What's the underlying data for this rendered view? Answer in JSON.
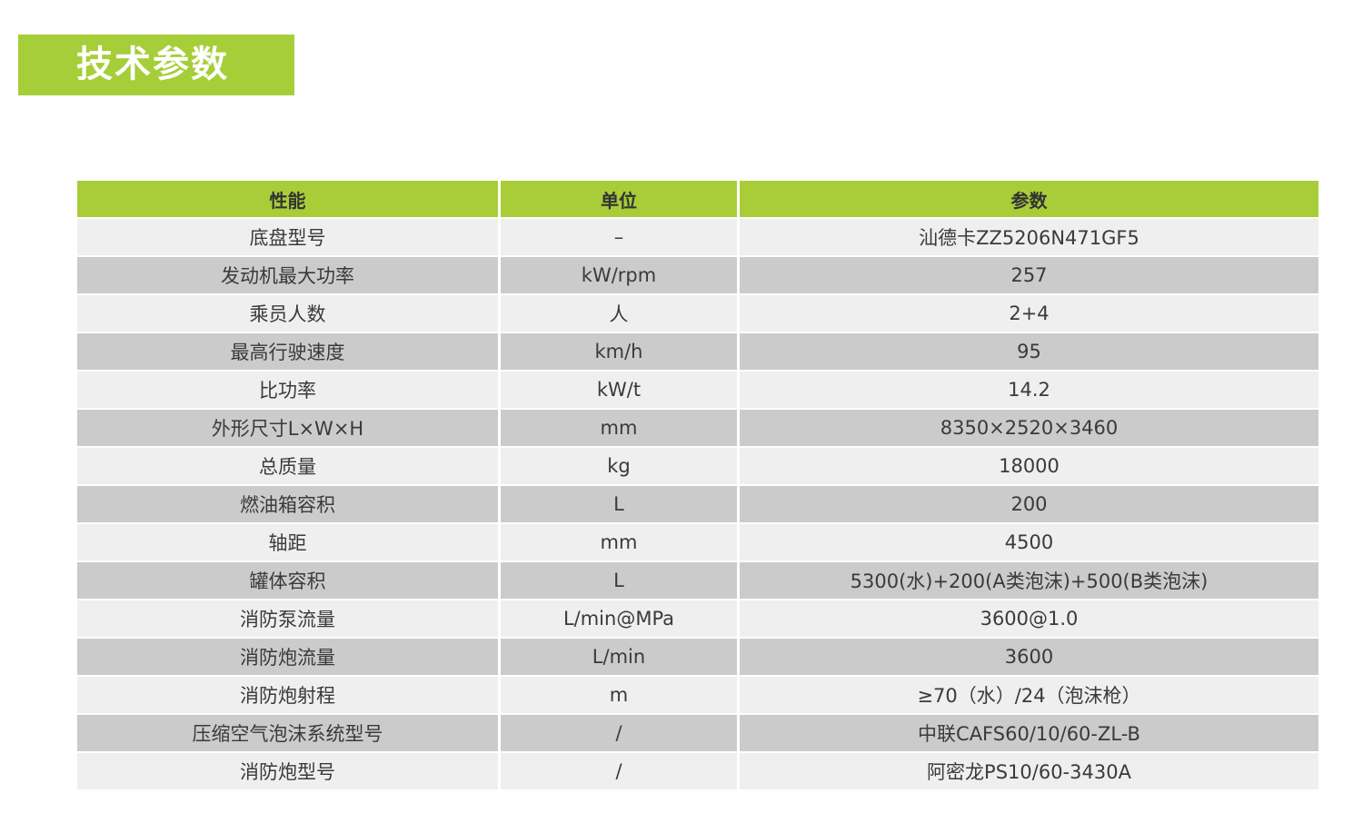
{
  "title": "技术参数",
  "colors": {
    "accent": "#a6ce39",
    "row_light": "#efefef",
    "row_dark": "#cbcbcb"
  },
  "table": {
    "headers": [
      "性能",
      "单位",
      "参数"
    ],
    "rows": [
      [
        "底盘型号",
        "–",
        "汕德卡ZZ5206N471GF5"
      ],
      [
        "发动机最大功率",
        "kW/rpm",
        "257"
      ],
      [
        "乘员人数",
        "人",
        "2+4"
      ],
      [
        "最高行驶速度",
        "km/h",
        "95"
      ],
      [
        "比功率",
        "kW/t",
        "14.2"
      ],
      [
        "外形尺寸L×W×H",
        "mm",
        "8350×2520×3460"
      ],
      [
        "总质量",
        "kg",
        "18000"
      ],
      [
        "燃油箱容积",
        "L",
        "200"
      ],
      [
        "轴距",
        "mm",
        "4500"
      ],
      [
        "罐体容积",
        "L",
        "5300(水)+200(A类泡沫)+500(B类泡沫)"
      ],
      [
        "消防泵流量",
        "L/min@MPa",
        "3600@1.0"
      ],
      [
        "消防炮流量",
        "L/min",
        "3600"
      ],
      [
        "消防炮射程",
        "m",
        "≥70（水）/24（泡沫枪）"
      ],
      [
        "压缩空气泡沫系统型号",
        "/",
        "中联CAFS60/10/60-ZL-B"
      ],
      [
        "消防炮型号",
        "/",
        "阿密龙PS10/60-3430A"
      ]
    ]
  }
}
